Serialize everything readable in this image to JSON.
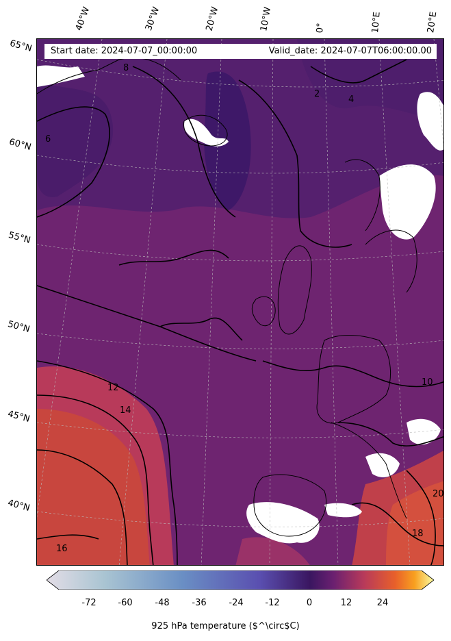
{
  "header": {
    "start_date": "Start date: 2024-07-07_00:00:00",
    "valid_date": "Valid_date: 2024-07-07T06:00:00.00"
  },
  "longitude_labels": [
    "40°W",
    "30°W",
    "20°W",
    "10°W",
    "0°",
    "10°E",
    "20°E"
  ],
  "latitude_labels": [
    "65°N",
    "60°N",
    "55°N",
    "50°N",
    "45°N",
    "40°N"
  ],
  "contour_labels": [
    "2",
    "4",
    "6",
    "8",
    "10",
    "12",
    "14",
    "16",
    "18",
    "20"
  ],
  "colorbar": {
    "ticks": [
      "-72",
      "-60",
      "-48",
      "-36",
      "-24",
      "-12",
      "0",
      "12",
      "24"
    ],
    "label": "925 hPa temperature ($^\\circ$C)",
    "colors": [
      "#e3dde6",
      "#9fbfcf",
      "#6a8fc4",
      "#5a4fb0",
      "#3a1660",
      "#5c1e6b",
      "#a33a6a",
      "#e0563a",
      "#f8a020",
      "#fbfda4"
    ]
  },
  "map_colors": {
    "cold": "#3e1868",
    "cool": "#55206e",
    "mild": "#7a2870",
    "warm": "#b83a5a",
    "hot": "#d4503e",
    "missing": "#ffffff"
  }
}
